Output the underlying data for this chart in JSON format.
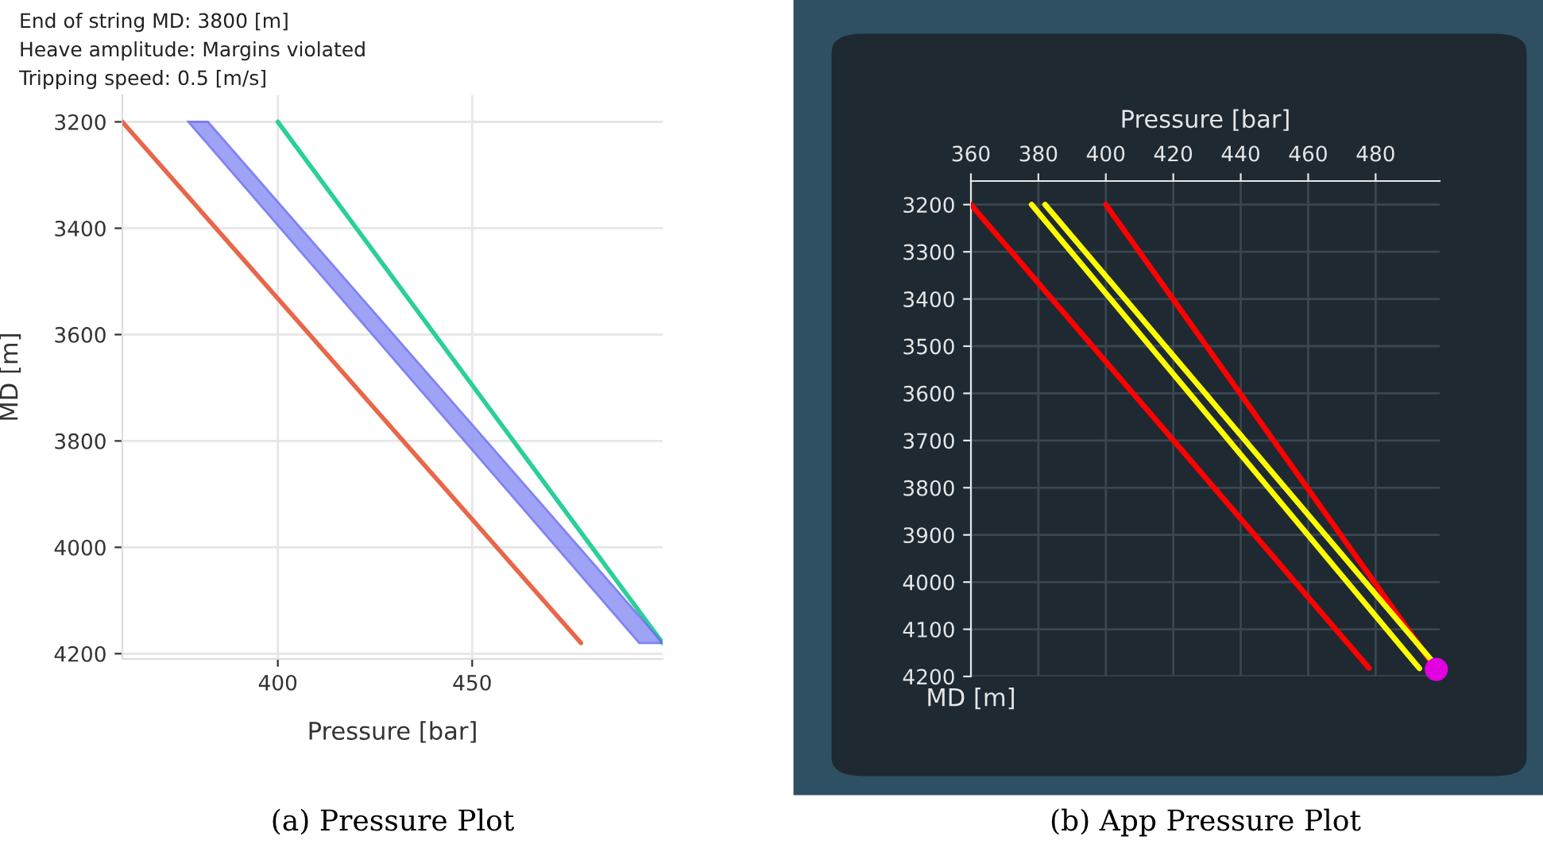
{
  "chart_data": [
    {
      "type": "line",
      "title": "(a) Pressure Plot",
      "xlabel": "Pressure [bar]",
      "ylabel": "MD [m]",
      "annotations": [
        "End of string MD: 3800 [m]",
        "Heave amplitude: Margins violated",
        "Tripping speed: 0.5 [m/s]"
      ],
      "xlim": [
        360,
        499
      ],
      "xticks": [
        400,
        450
      ],
      "ylim": [
        4210,
        3150
      ],
      "yticks": [
        3200,
        3400,
        3600,
        3800,
        4000,
        4200
      ],
      "grid": true,
      "series": [
        {
          "color": "#e8664a",
          "x": [
            360,
            478
          ],
          "values": [
            3200,
            4180
          ]
        },
        {
          "color": "#2bcf9a",
          "x": [
            400,
            499
          ],
          "values": [
            3200,
            4180
          ]
        },
        {
          "type": "area",
          "color": "#8f93f5",
          "x": [
            377,
            382,
            499,
            493
          ],
          "values": [
            3200,
            3200,
            4180,
            4180
          ]
        }
      ]
    },
    {
      "type": "line",
      "title": "(b) App Pressure Plot",
      "xlabel": "Pressure [bar]",
      "ylabel": "MD [m]",
      "xlim": [
        360,
        499
      ],
      "xticks": [
        360,
        380,
        400,
        420,
        440,
        460,
        480
      ],
      "ylim": [
        4200,
        3150
      ],
      "yticks": [
        3200,
        3300,
        3400,
        3500,
        3600,
        3700,
        3800,
        3900,
        4000,
        4100,
        4200
      ],
      "grid": true,
      "series": [
        {
          "color": "#ff0000",
          "x": [
            360,
            478
          ],
          "values": [
            3200,
            4182
          ]
        },
        {
          "color": "#ff0000",
          "x": [
            400,
            498
          ],
          "values": [
            3200,
            4185
          ]
        },
        {
          "color": "#ffff00",
          "x": [
            378,
            493
          ],
          "values": [
            3200,
            4183
          ]
        },
        {
          "color": "#ffff00",
          "x": [
            382,
            496.5
          ],
          "values": [
            3200,
            4165
          ]
        },
        {
          "type": "scatter",
          "color": "#e000e0",
          "x": [
            498
          ],
          "values": [
            4185
          ]
        }
      ]
    }
  ]
}
